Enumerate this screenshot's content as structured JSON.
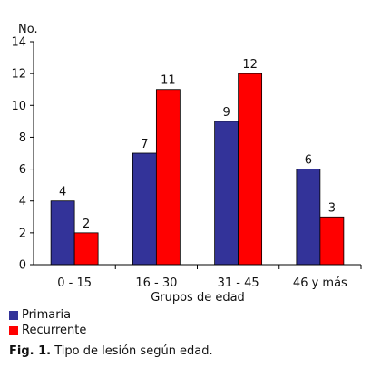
{
  "chart_data": {
    "type": "bar",
    "ylabel": "No.",
    "xlabel": "Grupos de edad",
    "categories": [
      "0 - 15",
      "16 - 30",
      "31 - 45",
      "46 y más"
    ],
    "ylim": [
      0,
      14
    ],
    "yticks": [
      0,
      2,
      4,
      6,
      8,
      10,
      12,
      14
    ],
    "grid": false,
    "legend_position": "bottom-left",
    "series": [
      {
        "name": "Primaria",
        "color": "#333399",
        "values": [
          4,
          7,
          9,
          6
        ]
      },
      {
        "name": "Recurrente",
        "color": "#FF0000",
        "values": [
          2,
          11,
          12,
          3
        ]
      }
    ]
  },
  "caption": {
    "prefix": "Fig. 1.",
    "text": "Tipo de lesión según edad."
  }
}
